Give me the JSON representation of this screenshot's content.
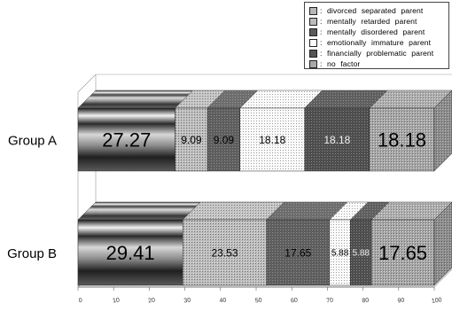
{
  "chart_data": {
    "type": "bar",
    "stacked": true,
    "orientation": "horizontal",
    "three_d": true,
    "categories": [
      "Group A",
      "Group B"
    ],
    "series": [
      {
        "name": "divorced  separated  parent",
        "values": [
          27.27,
          29.41
        ],
        "color": "#9a9a9a",
        "legend_color": "#b8b8b8"
      },
      {
        "name": "mentally  retarded  parent",
        "values": [
          9.09,
          23.53
        ],
        "color": "#b0b0b0",
        "legend_color": "#bcbcbc"
      },
      {
        "name": "mentally  disordered  parent",
        "values": [
          9.09,
          17.65
        ],
        "color": "#6a6a6a",
        "legend_color": "#5a5a5a"
      },
      {
        "name": "emotionally  immature  parent",
        "values": [
          18.18,
          5.88
        ],
        "color": "#f4f4f4",
        "legend_color": "#ffffff"
      },
      {
        "name": "financially  problematic  parent",
        "values": [
          18.18,
          5.88
        ],
        "color": "#5c5c5c",
        "legend_color": "#555555"
      },
      {
        "name": "no  factor",
        "values": [
          18.18,
          17.65
        ],
        "color": "#b4b4b4",
        "legend_color": "#a8a8a8"
      }
    ],
    "data_labels": [
      [
        "27.27",
        "9.09",
        "9.09",
        "18.18",
        "18.18",
        "18.18"
      ],
      [
        "29.41",
        "23.53",
        "17.65",
        "5.88",
        "5.88",
        "17.65"
      ]
    ],
    "xlim": [
      0,
      100
    ],
    "xticks": [
      0,
      10,
      20,
      30,
      40,
      50,
      60,
      70,
      80,
      90,
      100
    ],
    "xtick_labels": [
      "0",
      "10",
      "20",
      "30",
      "40",
      "50",
      "60",
      "70",
      "80",
      "90",
      "100"
    ],
    "legend_position": "top-right",
    "legend_prefix": ":",
    "grid": false
  }
}
